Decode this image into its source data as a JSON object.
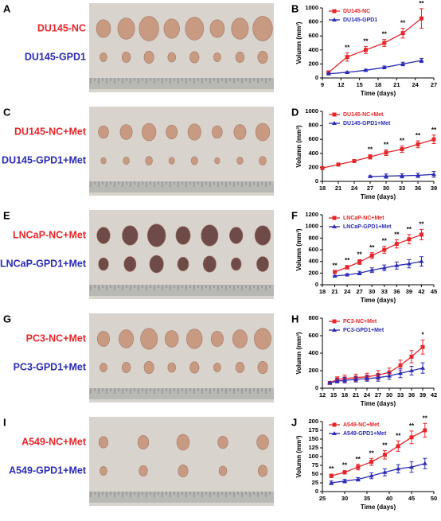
{
  "photo_panels": [
    {
      "letter": "A",
      "labels": [
        "DU145-NC",
        "DU145-GPD1"
      ]
    },
    {
      "letter": "C",
      "labels": [
        "DU145-NC+Met",
        "DU145-GPD1+Met"
      ]
    },
    {
      "letter": "E",
      "labels": [
        "LNCaP-NC+Met",
        "LNCaP-GPD1+Met"
      ]
    },
    {
      "letter": "G",
      "labels": [
        "PC3-NC+Met",
        "PC3-GPD1+Met"
      ]
    },
    {
      "letter": "I",
      "labels": [
        "A549-NC+Met",
        "A549-GPD1+Met"
      ]
    }
  ],
  "chart_data": [
    {
      "type": "line",
      "letter": "B",
      "x_label": "Time (days)",
      "y_label": "Volumn (mm³)",
      "xlim": [
        9,
        27
      ],
      "xticks": [
        9,
        12,
        15,
        18,
        21,
        24,
        27
      ],
      "ylim": [
        0,
        1000
      ],
      "yticks": [
        0,
        200,
        400,
        600,
        800,
        1000
      ],
      "series": [
        {
          "name": "DU145-NC",
          "color": "#e8262a",
          "marker": "square",
          "x": [
            10,
            13,
            16,
            19,
            22,
            25
          ],
          "values": [
            80,
            300,
            400,
            500,
            640,
            850
          ],
          "errors": [
            20,
            60,
            50,
            50,
            70,
            140
          ]
        },
        {
          "name": "DU145-GPD1",
          "color": "#2b2bb8",
          "marker": "triangle",
          "x": [
            10,
            13,
            16,
            19,
            22,
            25
          ],
          "values": [
            60,
            80,
            110,
            150,
            200,
            250
          ],
          "errors": [
            10,
            10,
            15,
            20,
            25,
            30
          ]
        }
      ],
      "significance": [
        null,
        "**",
        "**",
        "**",
        "**",
        "**"
      ]
    },
    {
      "type": "line",
      "letter": "D",
      "x_label": "Time (days)",
      "y_label": "Volumn (mm³)",
      "xlim": [
        18,
        39
      ],
      "xticks": [
        18,
        21,
        24,
        27,
        30,
        33,
        36,
        39
      ],
      "ylim": [
        0,
        1000
      ],
      "yticks": [
        0,
        200,
        400,
        600,
        800,
        1000
      ],
      "series": [
        {
          "name": "DU145-NC+Met",
          "color": "#e8262a",
          "marker": "square",
          "x": [
            18,
            21,
            24,
            27,
            30,
            33,
            36,
            39
          ],
          "values": [
            190,
            240,
            290,
            350,
            410,
            460,
            530,
            600
          ],
          "errors": [
            10,
            15,
            20,
            30,
            40,
            45,
            50,
            60
          ]
        },
        {
          "name": "DU145-GPD1+Met",
          "color": "#2b2bb8",
          "marker": "triangle",
          "x": [
            27,
            30,
            33,
            36,
            39
          ],
          "values": [
            70,
            75,
            80,
            85,
            100
          ],
          "errors": [
            10,
            30,
            30,
            30,
            40
          ]
        }
      ],
      "significance": [
        null,
        null,
        null,
        "**",
        "**",
        "**",
        "**",
        "**"
      ]
    },
    {
      "type": "line",
      "letter": "F",
      "x_label": "Time (days)",
      "y_label": "Volumn (mm³)",
      "xlim": [
        18,
        45
      ],
      "xticks": [
        18,
        21,
        24,
        27,
        30,
        33,
        36,
        39,
        42,
        45
      ],
      "ylim": [
        0,
        1200
      ],
      "yticks": [
        0,
        200,
        400,
        600,
        800,
        1000,
        1200
      ],
      "series": [
        {
          "name": "LNCaP-NC+Met",
          "color": "#e8262a",
          "marker": "square",
          "x": [
            21,
            24,
            27,
            30,
            33,
            36,
            39,
            42
          ],
          "values": [
            220,
            300,
            390,
            500,
            600,
            700,
            780,
            860
          ],
          "errors": [
            20,
            30,
            40,
            50,
            60,
            70,
            80,
            90
          ]
        },
        {
          "name": "LNCaP-GPD1+Met",
          "color": "#2b2bb8",
          "marker": "triangle",
          "x": [
            21,
            24,
            27,
            30,
            33,
            36,
            39,
            42
          ],
          "values": [
            150,
            170,
            200,
            250,
            290,
            330,
            360,
            400
          ],
          "errors": [
            10,
            20,
            30,
            40,
            50,
            60,
            70,
            80
          ]
        }
      ],
      "significance": [
        "**",
        "**",
        "**",
        "**",
        "**",
        "**",
        "**",
        "**"
      ]
    },
    {
      "type": "line",
      "letter": "H",
      "x_label": "Time (days)",
      "y_label": "Volumn (mm³)",
      "xlim": [
        12,
        42
      ],
      "xticks": [
        12,
        15,
        18,
        21,
        24,
        27,
        30,
        33,
        36,
        39,
        42
      ],
      "ylim": [
        0,
        800
      ],
      "yticks": [
        0,
        200,
        400,
        600,
        800
      ],
      "series": [
        {
          "name": "PC3-NC+Met",
          "color": "#e8262a",
          "marker": "square",
          "x": [
            14,
            16,
            18,
            21,
            24,
            27,
            30,
            33,
            36,
            39
          ],
          "values": [
            60,
            100,
            110,
            120,
            130,
            150,
            180,
            260,
            360,
            470
          ],
          "errors": [
            10,
            30,
            40,
            40,
            40,
            50,
            50,
            60,
            70,
            80
          ]
        },
        {
          "name": "PC3-GPD1+Met",
          "color": "#2b2bb8",
          "marker": "triangle",
          "x": [
            14,
            16,
            18,
            21,
            24,
            27,
            30,
            33,
            36,
            39
          ],
          "values": [
            60,
            80,
            90,
            100,
            110,
            120,
            140,
            170,
            200,
            230
          ],
          "errors": [
            10,
            20,
            30,
            30,
            30,
            40,
            40,
            50,
            50,
            60
          ]
        }
      ],
      "significance": [
        null,
        null,
        null,
        null,
        null,
        null,
        null,
        null,
        null,
        "*"
      ]
    },
    {
      "type": "line",
      "letter": "J",
      "x_label": "Time (days)",
      "y_label": "Volumn (mm³)",
      "xlim": [
        25,
        50
      ],
      "xticks": [
        25,
        30,
        35,
        40,
        45,
        50
      ],
      "ylim": [
        0,
        200
      ],
      "yticks": [
        0,
        25,
        50,
        75,
        100,
        125,
        150,
        175,
        200
      ],
      "series": [
        {
          "name": "A549-NC+Met",
          "color": "#e8262a",
          "marker": "square",
          "x": [
            27,
            30,
            33,
            36,
            39,
            42,
            45,
            48
          ],
          "values": [
            45,
            55,
            70,
            85,
            105,
            130,
            155,
            175
          ],
          "errors": [
            5,
            5,
            8,
            10,
            12,
            15,
            18,
            20
          ]
        },
        {
          "name": "A549-GPD1+Met",
          "color": "#2b2bb8",
          "marker": "triangle",
          "x": [
            27,
            30,
            33,
            36,
            39,
            42,
            45,
            48
          ],
          "values": [
            25,
            30,
            35,
            45,
            55,
            65,
            70,
            80
          ],
          "errors": [
            5,
            5,
            5,
            8,
            10,
            12,
            15,
            15
          ]
        }
      ],
      "significance": [
        "**",
        "**",
        "**",
        "**",
        "**",
        "**",
        "**",
        "**"
      ]
    }
  ]
}
